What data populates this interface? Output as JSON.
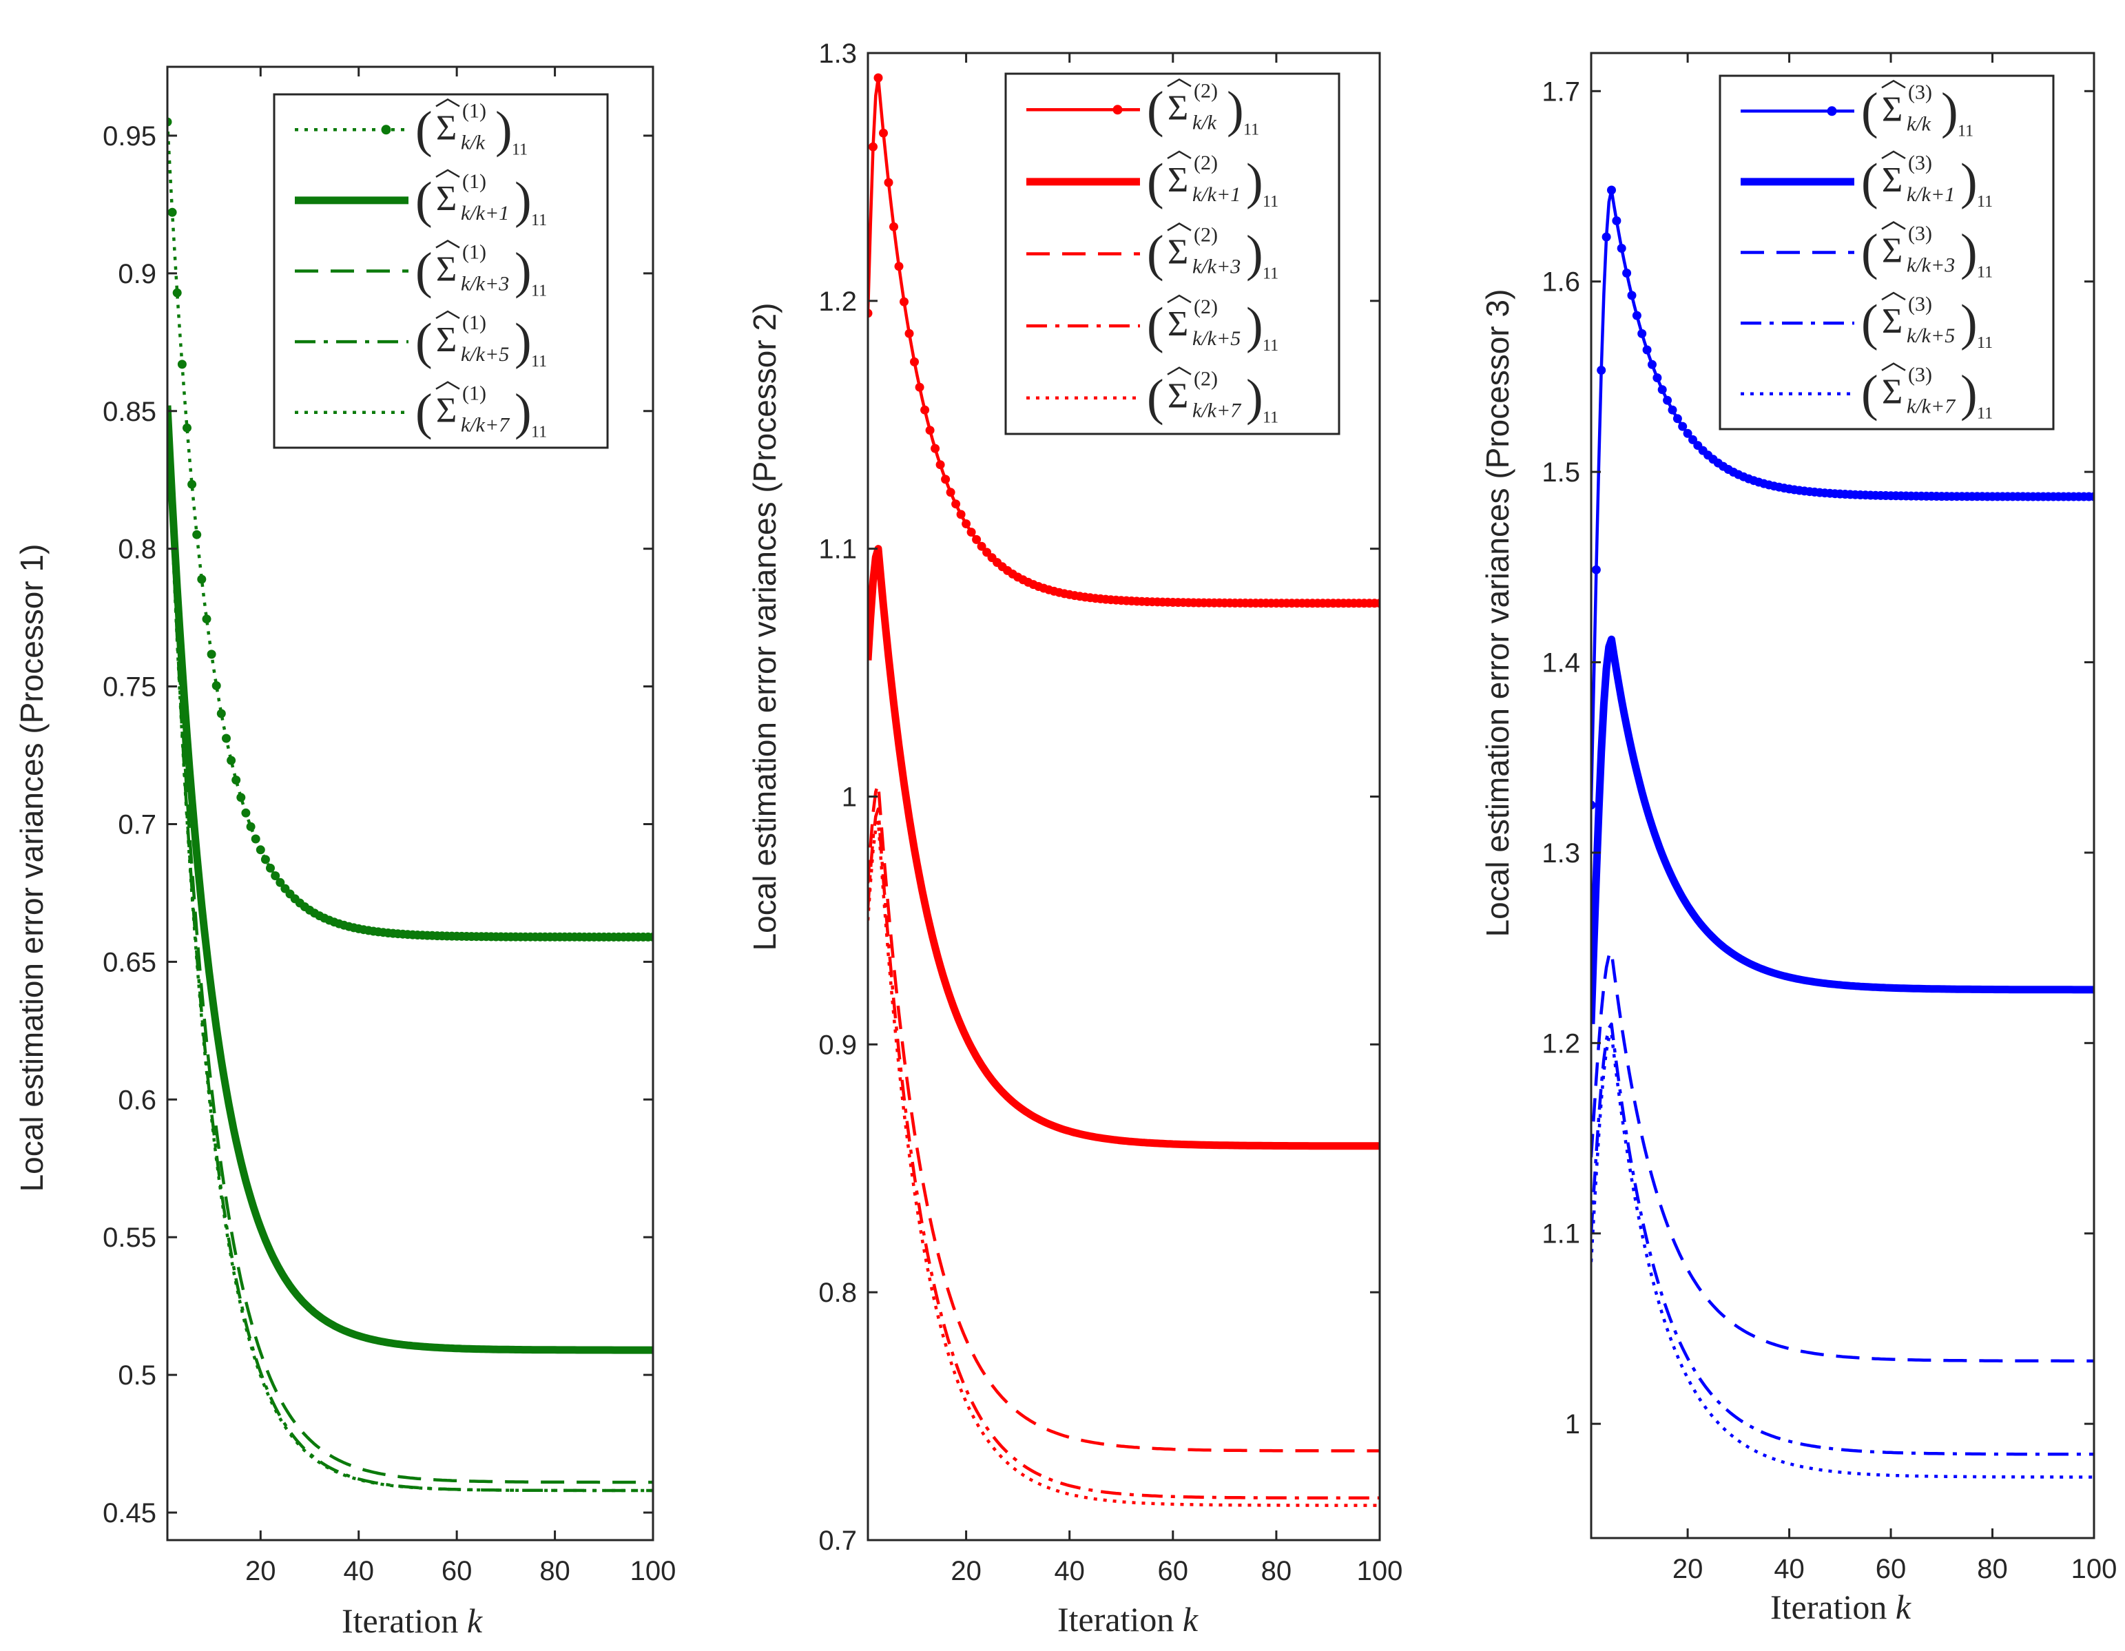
{
  "chart_data": [
    {
      "type": "line",
      "ylabel": "Local estimation error variances (Processor 1)",
      "xlabel_text": "Iteration ",
      "xlabel_var": "k",
      "xlim": [
        1,
        100
      ],
      "ylim": [
        0.44,
        0.975
      ],
      "xticks": [
        20,
        40,
        60,
        80,
        100
      ],
      "yticks": [
        0.45,
        0.5,
        0.55,
        0.6,
        0.65,
        0.7,
        0.75,
        0.8,
        0.85,
        0.9,
        0.95
      ],
      "ytick_labels": [
        "0.45",
        "0.5",
        "0.55",
        "0.6",
        "0.65",
        "0.7",
        "0.75",
        "0.8",
        "0.85",
        "0.9",
        "0.95"
      ],
      "color": "#0b7a0b",
      "legend_position": "top-right",
      "series": [
        {
          "name": "Σ̂^(1)_{k/k} 11",
          "sup": "(1)",
          "sub": "k/k",
          "idx": "11",
          "style": "dotted-marker",
          "start": 0.955,
          "final": 0.659,
          "decay": 8.5
        },
        {
          "name": "Σ̂^(1)_{k/k+1} 11",
          "sup": "(1)",
          "sub": "k/k+1",
          "idx": "11",
          "style": "thick",
          "start": 0.852,
          "final": 0.509,
          "decay": 9.3
        },
        {
          "name": "Σ̂^(1)_{k/k+3} 11",
          "sup": "(1)",
          "sub": "k/k+3",
          "idx": "11",
          "style": "dashed",
          "start": 0.85,
          "final": 0.461,
          "decay": 9.0
        },
        {
          "name": "Σ̂^(1)_{k/k+5} 11",
          "sup": "(1)",
          "sub": "k/k+5",
          "idx": "11",
          "style": "dashdot",
          "start": 0.849,
          "final": 0.458,
          "decay": 8.6
        },
        {
          "name": "Σ̂^(1)_{k/k+7} 11",
          "sup": "(1)",
          "sub": "k/k+7",
          "idx": "11",
          "style": "dotted",
          "start": 0.848,
          "final": 0.458,
          "decay": 8.5
        }
      ]
    },
    {
      "type": "line",
      "ylabel": "Local estimation error variances (Processor 2)",
      "xlabel_text": "Iteration ",
      "xlabel_var": "k",
      "xlim": [
        1,
        100
      ],
      "ylim": [
        0.7,
        1.3
      ],
      "xticks": [
        20,
        40,
        60,
        80,
        100
      ],
      "yticks": [
        0.7,
        0.8,
        0.9,
        1.0,
        1.1,
        1.2,
        1.3
      ],
      "ytick_labels": [
        "0.7",
        "0.8",
        "0.9",
        "1",
        "1.1",
        "1.2",
        "1.3"
      ],
      "color": "#ff0000",
      "legend_position": "top-right",
      "series": [
        {
          "name": "Σ̂^(2)_{k/k} 11",
          "sup": "(2)",
          "sub": "k/k",
          "idx": "11",
          "style": "solid-marker",
          "start": 1.195,
          "peak": 1.29,
          "peakk": 3,
          "final": 1.078,
          "decay": 9.0
        },
        {
          "name": "Σ̂^(2)_{k/k+1} 11",
          "sup": "(2)",
          "sub": "k/k+1",
          "idx": "11",
          "style": "thick",
          "start": 1.055,
          "peak": 1.1,
          "peakk": 3,
          "final": 0.859,
          "decay": 10.0
        },
        {
          "name": "Σ̂^(2)_{k/k+3} 11",
          "sup": "(2)",
          "sub": "k/k+3",
          "idx": "11",
          "style": "dashed",
          "start": 0.965,
          "peak": 1.005,
          "peakk": 3,
          "final": 0.736,
          "decay": 9.5
        },
        {
          "name": "Σ̂^(2)_{k/k+5} 11",
          "sup": "(2)",
          "sub": "k/k+5",
          "idx": "11",
          "style": "dashdot",
          "start": 0.955,
          "peak": 0.995,
          "peakk": 3,
          "final": 0.717,
          "decay": 9.2
        },
        {
          "name": "Σ̂^(2)_{k/k+7} 11",
          "sup": "(2)",
          "sub": "k/k+7",
          "idx": "11",
          "style": "dotted",
          "start": 0.95,
          "peak": 0.99,
          "peakk": 3,
          "final": 0.714,
          "decay": 9.0
        }
      ]
    },
    {
      "type": "line",
      "ylabel": "Local estimation error variances (Processor 3)",
      "xlabel_text": "Iteration ",
      "xlabel_var": "k",
      "xlim": [
        1,
        100
      ],
      "ylim": [
        0.94,
        1.72
      ],
      "xticks": [
        20,
        40,
        60,
        80,
        100
      ],
      "yticks": [
        1.0,
        1.1,
        1.2,
        1.3,
        1.4,
        1.5,
        1.6,
        1.7
      ],
      "ytick_labels": [
        "1",
        "1.1",
        "1.2",
        "1.3",
        "1.4",
        "1.5",
        "1.6",
        "1.7"
      ],
      "color": "#0000ff",
      "legend_position": "top-right",
      "series": [
        {
          "name": "Σ̂^(3)_{k/k} 11",
          "sup": "(3)",
          "sub": "k/k",
          "idx": "11",
          "style": "solid-marker",
          "start": 1.325,
          "peak": 1.648,
          "peakk": 5,
          "final": 1.487,
          "decay": 9.5
        },
        {
          "name": "Σ̂^(3)_{k/k+1} 11",
          "sup": "(3)",
          "sub": "k/k+1",
          "idx": "11",
          "style": "thick",
          "start": 1.21,
          "peak": 1.412,
          "peakk": 5,
          "final": 1.228,
          "decay": 10.5
        },
        {
          "name": "Σ̂^(3)_{k/k+3} 11",
          "sup": "(3)",
          "sub": "k/k+3",
          "idx": "11",
          "style": "dashed",
          "start": 1.14,
          "peak": 1.248,
          "peakk": 5,
          "final": 1.033,
          "decay": 10.0
        },
        {
          "name": "Σ̂^(3)_{k/k+5} 11",
          "sup": "(3)",
          "sub": "k/k+5",
          "idx": "11",
          "style": "dashdot",
          "start": 1.1,
          "peak": 1.21,
          "peakk": 5,
          "final": 0.984,
          "decay": 10.0
        },
        {
          "name": "Σ̂^(3)_{k/k+7} 11",
          "sup": "(3)",
          "sub": "k/k+7",
          "idx": "11",
          "style": "dotted",
          "start": 1.085,
          "peak": 1.205,
          "peakk": 5,
          "final": 0.972,
          "decay": 10.0
        }
      ]
    }
  ]
}
